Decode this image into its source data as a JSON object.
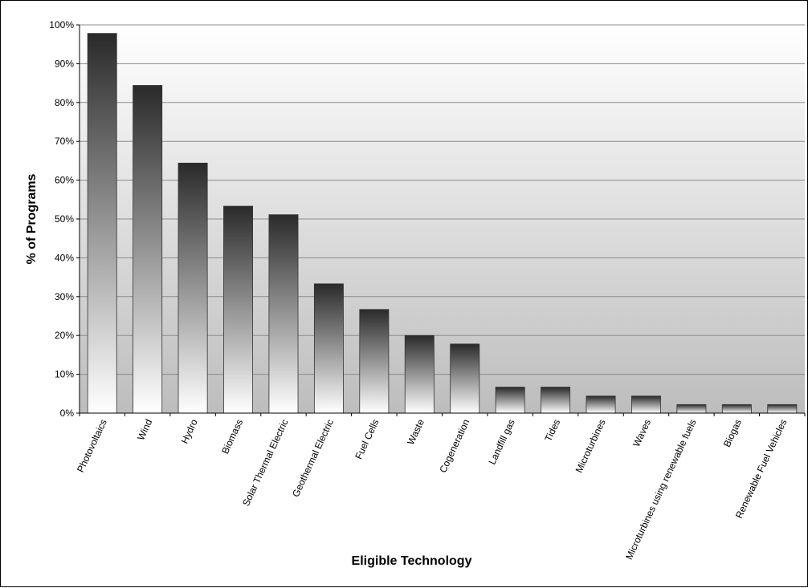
{
  "chart_data": {
    "type": "bar",
    "title": "",
    "xlabel": "Eligible Technology",
    "ylabel": "% of Programs",
    "ylim": [
      0,
      100
    ],
    "yticks": [
      "0%",
      "10%",
      "20%",
      "30%",
      "40%",
      "50%",
      "60%",
      "70%",
      "80%",
      "90%",
      "100%"
    ],
    "grid": true,
    "legend": "none",
    "categories": [
      "Photovoltaics",
      "Wind",
      "Hydro",
      "Biomass",
      "Solar Thermal Electric",
      "Geothermal Electric",
      "Fuel Cells",
      "Waste",
      "Cogeneration",
      "Landfill gas",
      "Tides",
      "Microturbines",
      "Waves",
      "Microturbines using renewable fuels",
      "Biogas",
      "Renewable Fuel Vehicles"
    ],
    "values": [
      97.8,
      84.4,
      64.4,
      53.3,
      51.1,
      33.3,
      26.7,
      20.0,
      17.8,
      6.7,
      6.7,
      4.4,
      4.4,
      2.2,
      2.2,
      2.2
    ],
    "colors": {
      "bar_dark": "#2a2a2a",
      "bar_mid": "#8a8a8a",
      "bar_light": "#ffffff",
      "plot_top": "#ffffff",
      "plot_bottom": "#bdbdbd",
      "grid": "#8c8c8c"
    }
  }
}
